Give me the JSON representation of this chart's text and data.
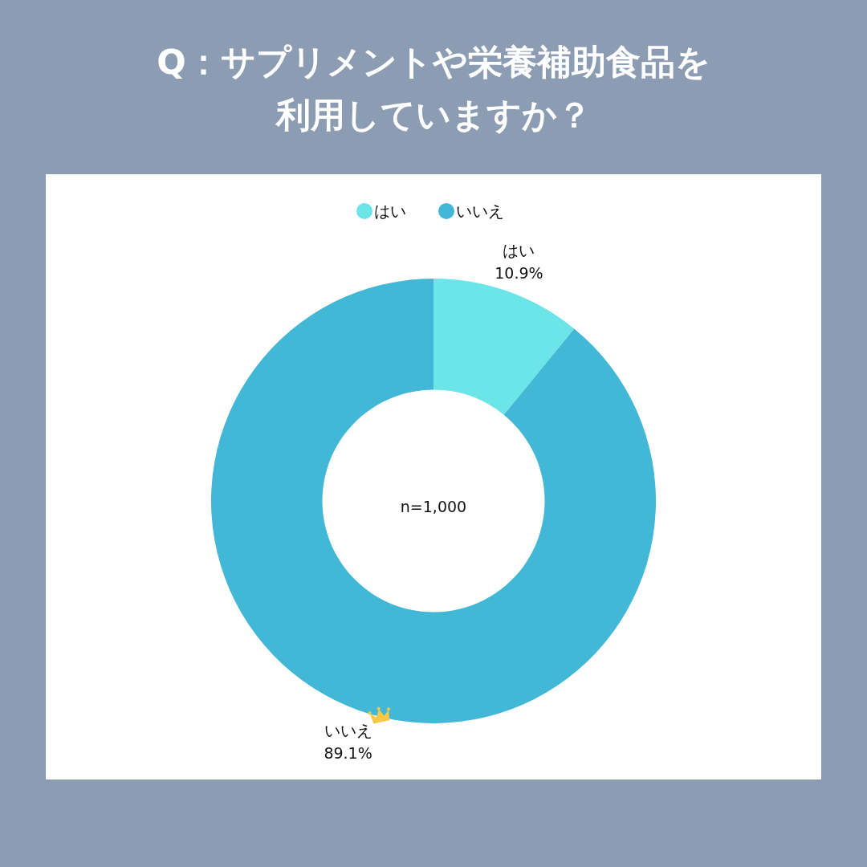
{
  "chart_data": {
    "type": "donut",
    "title": "Q：サプリメントや栄養補助食品を利用していますか？",
    "categories": [
      "はい",
      "いいえ"
    ],
    "values": [
      10.9,
      89.1
    ],
    "colors": [
      "#6ce5e8",
      "#42b8d6"
    ],
    "value_labels": [
      "10.9%",
      "89.1%"
    ],
    "legend": "top",
    "annotations": [
      "n=1,000"
    ]
  }
}
